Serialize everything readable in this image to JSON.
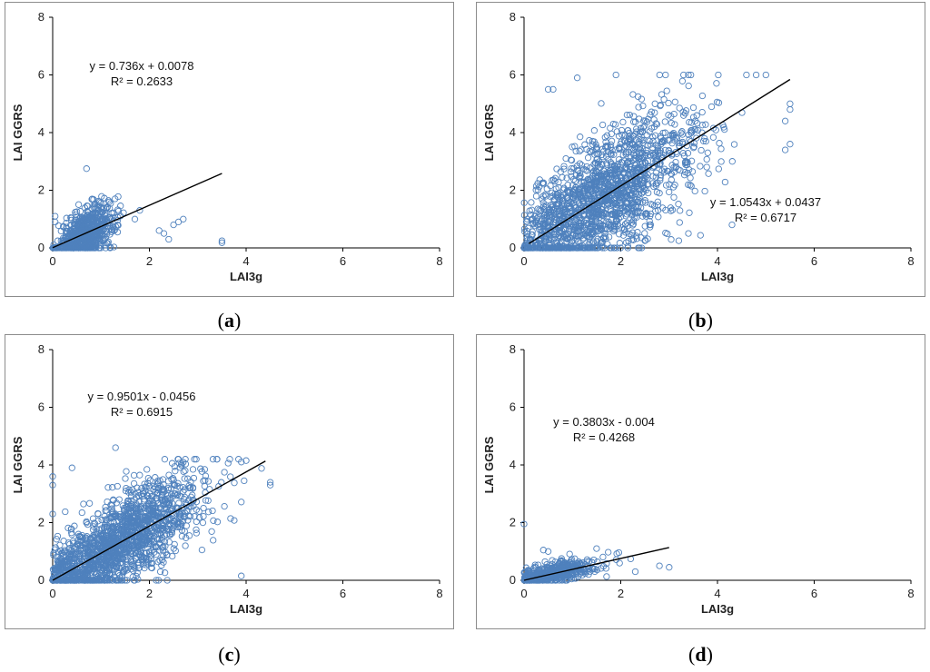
{
  "colors": {
    "marker": "#4f81bd",
    "trend": "#000000",
    "frame": "#8c8c8c",
    "axis": "#000000"
  },
  "chart_data": [
    {
      "type": "scatter",
      "caption": "a",
      "xlabel": "LAI3g",
      "ylabel": "LAI GGRS",
      "xlim": [
        0,
        8
      ],
      "ylim": [
        0,
        8
      ],
      "xticks": [
        "0",
        "2",
        "4",
        "6",
        "8"
      ],
      "yticks": [
        "0",
        "2",
        "4",
        "6",
        "8"
      ],
      "equation": "y = 0.736x + 0.0078",
      "r2": "R² = 0.2633",
      "trendline": {
        "slope": 0.736,
        "intercept": 0.0078,
        "x_range": [
          0,
          3.5
        ]
      },
      "cloud": {
        "cx": 0.7,
        "cy": 0.6,
        "sx": 0.3,
        "sy": 0.45,
        "n": 650,
        "xmax": 2.7,
        "ymax": 2.8
      },
      "extra_points": [
        [
          0.7,
          2.75
        ],
        [
          2.2,
          0.6
        ],
        [
          2.3,
          0.5
        ],
        [
          2.4,
          0.3
        ],
        [
          2.5,
          0.8
        ],
        [
          2.6,
          0.9
        ],
        [
          2.7,
          1.0
        ],
        [
          3.5,
          0.25
        ],
        [
          3.5,
          0.18
        ],
        [
          1.8,
          1.3
        ],
        [
          1.7,
          1.0
        ],
        [
          0.05,
          0.9
        ],
        [
          0.05,
          1.1
        ]
      ]
    },
    {
      "type": "scatter",
      "caption": "b",
      "xlabel": "LAI3g",
      "ylabel": "LAI GGRS",
      "xlim": [
        0,
        8
      ],
      "ylim": [
        0,
        8
      ],
      "xticks": [
        "0",
        "2",
        "4",
        "6",
        "8"
      ],
      "yticks": [
        "0",
        "2",
        "4",
        "6",
        "8"
      ],
      "equation": "y = 1.0543x + 0.0437",
      "r2": "R² = 0.6717",
      "trendline": {
        "slope": 1.0543,
        "intercept": 0.0437,
        "x_range": [
          0.1,
          5.5
        ]
      },
      "cloud": {
        "cx": 1.6,
        "cy": 1.8,
        "sx": 1.0,
        "sy": 1.1,
        "n": 1700,
        "xmax": 5.5,
        "ymax": 6.0
      },
      "extra_points": [
        [
          0.5,
          5.5
        ],
        [
          0.6,
          5.5
        ],
        [
          1.1,
          5.9
        ],
        [
          1.9,
          6.0
        ],
        [
          3.3,
          6.0
        ],
        [
          3.4,
          6.0
        ],
        [
          4.6,
          6.0
        ],
        [
          4.8,
          6.0
        ],
        [
          5.0,
          6.0
        ],
        [
          5.5,
          5.0
        ],
        [
          5.5,
          4.8
        ],
        [
          5.4,
          3.4
        ],
        [
          5.5,
          3.6
        ],
        [
          5.4,
          4.4
        ],
        [
          4.3,
          0.8
        ],
        [
          3.2,
          0.25
        ],
        [
          3.4,
          0.5
        ],
        [
          2.5,
          0.25
        ]
      ]
    },
    {
      "type": "scatter",
      "caption": "c",
      "xlabel": "LAI3g",
      "ylabel": "LAI GGRS",
      "xlim": [
        0,
        8
      ],
      "ylim": [
        0,
        8
      ],
      "xticks": [
        "0",
        "2",
        "4",
        "6",
        "8"
      ],
      "yticks": [
        "0",
        "2",
        "4",
        "6",
        "8"
      ],
      "equation": "y = 0.9501x - 0.0456",
      "r2": "R² = 0.6915",
      "trendline": {
        "slope": 0.9501,
        "intercept": -0.0456,
        "x_range": [
          0,
          4.4
        ]
      },
      "cloud": {
        "cx": 1.3,
        "cy": 1.2,
        "sx": 0.9,
        "sy": 0.8,
        "n": 1700,
        "xmax": 4.5,
        "ymax": 4.2
      },
      "extra_points": [
        [
          1.3,
          4.6
        ],
        [
          0.4,
          3.9
        ],
        [
          0.0,
          3.6
        ],
        [
          0.0,
          3.3
        ],
        [
          3.9,
          4.1
        ],
        [
          4.0,
          4.15
        ],
        [
          4.5,
          3.4
        ],
        [
          4.5,
          3.3
        ],
        [
          3.9,
          0.15
        ],
        [
          0.0,
          2.3
        ]
      ]
    },
    {
      "type": "scatter",
      "caption": "d",
      "xlabel": "LAI3g",
      "ylabel": "LAI GGRS",
      "xlim": [
        0,
        8
      ],
      "ylim": [
        0,
        8
      ],
      "xticks": [
        "0",
        "2",
        "4",
        "6",
        "8"
      ],
      "yticks": [
        "0",
        "2",
        "4",
        "6",
        "8"
      ],
      "equation": "y = 0.3803x - 0.004",
      "r2": "R² = 0.4268",
      "trendline": {
        "slope": 0.3803,
        "intercept": -0.004,
        "x_range": [
          0,
          3.0
        ]
      },
      "cloud": {
        "cx": 0.6,
        "cy": 0.25,
        "sx": 0.45,
        "sy": 0.2,
        "n": 500,
        "xmax": 3.0,
        "ymax": 1.1
      },
      "extra_points": [
        [
          0.0,
          1.95
        ],
        [
          0.4,
          1.05
        ],
        [
          0.5,
          1.0
        ],
        [
          1.5,
          1.1
        ],
        [
          2.8,
          0.5
        ],
        [
          3.0,
          0.45
        ],
        [
          2.3,
          0.3
        ]
      ]
    }
  ]
}
